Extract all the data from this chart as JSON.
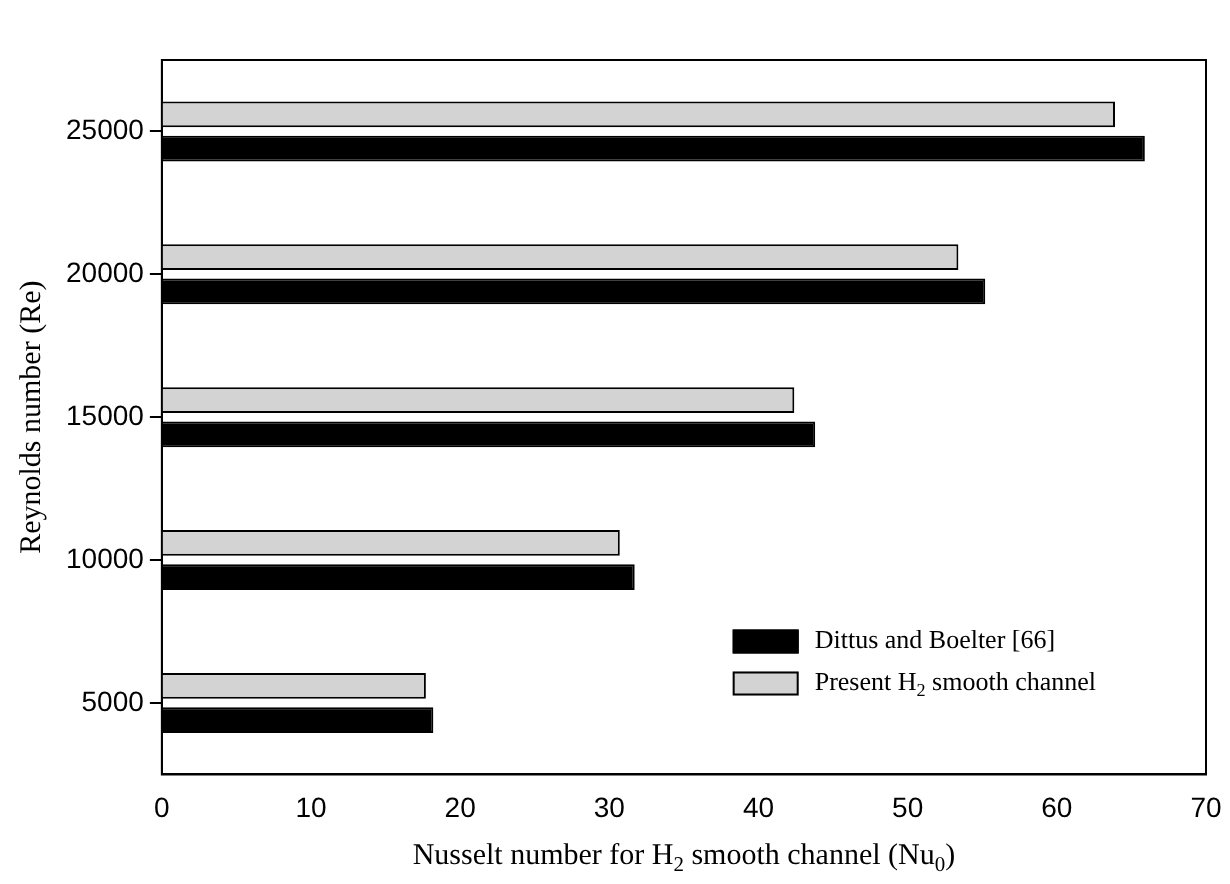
{
  "chart_data": {
    "type": "bar",
    "orientation": "horizontal",
    "xlabel": "Nusselt number for H$_{2}$ smooth channel (Nu$_{0}$)",
    "ylabel": "Reynolds number (Re)",
    "categories": [
      "25000",
      "20000",
      "15000",
      "10000",
      "5000"
    ],
    "series": [
      {
        "name": "Dittus and Boelter [66]",
        "color": "#000000",
        "values": [
          65.9,
          55.2,
          43.8,
          31.7,
          18.2
        ]
      },
      {
        "name": "Present H$_{2}$ smooth channel",
        "color": "#d3d3d3",
        "values": [
          63.9,
          53.4,
          42.4,
          30.7,
          17.7
        ]
      }
    ],
    "xlim": [
      0,
      70
    ],
    "xticks": [
      0,
      10,
      20,
      30,
      40,
      50,
      60,
      70
    ],
    "grid": false,
    "legend": "bottom right"
  }
}
